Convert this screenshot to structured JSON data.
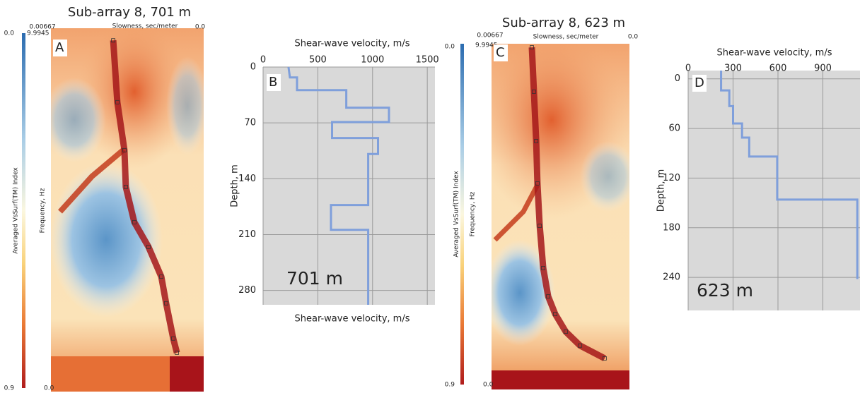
{
  "chart_data": [
    {
      "type": "dispersion",
      "title": "Sub-array 8, 701 m",
      "xlabel": "Slowness, sec/meter",
      "ylabel": "Frequency, Hz",
      "colorbar_label": "Averaged VsSurf(TM) Index",
      "panel_label": "A",
      "xlim": [
        0.00667,
        0
      ],
      "xticks": [
        {
          "value": 0.00667,
          "label": "0.00667"
        },
        {
          "value": 0,
          "label": "0.0"
        }
      ],
      "ylim": [
        9.9945,
        0
      ],
      "yticks": [
        {
          "value": 9.9945,
          "label": "9.9945"
        },
        {
          "value": 0,
          "label": "0.0"
        }
      ],
      "colorbar_lim": [
        0,
        0.9
      ],
      "colorbar_ticks": [
        {
          "value": 0,
          "label": "0.0"
        },
        0.9
      ],
      "x": [
        0.00395,
        0.00377,
        0.00346,
        0.0034,
        0.00303,
        0.00241,
        0.00185,
        0.00164,
        0.00133,
        0.00117
      ],
      "values": [
        9.66,
        7.96,
        6.64,
        5.63,
        4.66,
        3.98,
        3.16,
        2.43,
        1.46,
        1.07
      ]
    },
    {
      "type": "line",
      "xlabel": "Shear-wave velocity, m/s",
      "xlabel_bottom": "Shear-wave velocity, m/s",
      "ylabel": "Depth, m",
      "panel_label": "B",
      "annotation": "701 m",
      "grid": true,
      "xlim": [
        0,
        1570
      ],
      "xticks": [
        0,
        500,
        1000,
        1500
      ],
      "ylim": [
        0,
        298
      ],
      "yticks": [
        0,
        70,
        140,
        210,
        280
      ],
      "x": [
        232,
        245,
        310,
        310,
        760,
        760,
        1150,
        1150,
        630,
        630,
        1050,
        1050,
        960,
        960,
        620,
        620,
        960,
        960
      ],
      "series": [
        {
          "color": "#7f9fdb",
          "values": [
            0,
            13,
            13,
            29,
            29,
            51,
            51,
            69,
            69,
            89,
            89,
            109,
            109,
            173,
            173,
            204,
            204,
            298
          ]
        }
      ]
    },
    {
      "type": "dispersion",
      "title": "Sub-array 8, 623 m",
      "xlabel": "Slowness, sec/meter",
      "ylabel": "Frequency, Hz",
      "colorbar_label": "Averaged VsSurf(TM) Index",
      "panel_label": "C",
      "xlim": [
        0.00667,
        0
      ],
      "xticks": [
        {
          "value": 0.00667,
          "label": "0.00667"
        },
        {
          "value": 0,
          "label": "0.0"
        }
      ],
      "ylim": [
        9.9945,
        0
      ],
      "yticks": [
        {
          "value": 9.9945,
          "label": "9.9945"
        },
        {
          "value": 0,
          "label": "0.0"
        }
      ],
      "colorbar_lim": [
        0,
        0.9
      ],
      "colorbar_ticks": [
        {
          "value": 0,
          "label": "0.0"
        },
        0.9
      ],
      "x": [
        0.00472,
        0.00462,
        0.00451,
        0.00445,
        0.00434,
        0.00417,
        0.00393,
        0.00359,
        0.00308,
        0.00239,
        0.0012
      ],
      "values": [
        9.89,
        8.61,
        7.18,
        5.96,
        4.73,
        3.51,
        2.69,
        2.18,
        1.67,
        1.27,
        0.9
      ]
    },
    {
      "type": "line",
      "xlabel": "Shear-wave velocity, m/s",
      "ylabel": "Depth, m",
      "panel_label": "D",
      "annotation": "623 m",
      "grid": true,
      "xlim": [
        0,
        1148
      ],
      "xticks": [
        0,
        300,
        600,
        900
      ],
      "ylim": [
        -10,
        280
      ],
      "yticks": [
        0,
        60,
        120,
        180,
        240
      ],
      "x": [
        220,
        220,
        275,
        275,
        300,
        300,
        360,
        360,
        408,
        408,
        595,
        595,
        1130,
        1130
      ],
      "series": [
        {
          "color": "#7f9fdb",
          "values": [
            -10,
            14,
            14,
            33,
            33,
            54,
            54,
            71,
            71,
            94,
            94,
            146,
            146,
            242
          ]
        }
      ]
    }
  ]
}
